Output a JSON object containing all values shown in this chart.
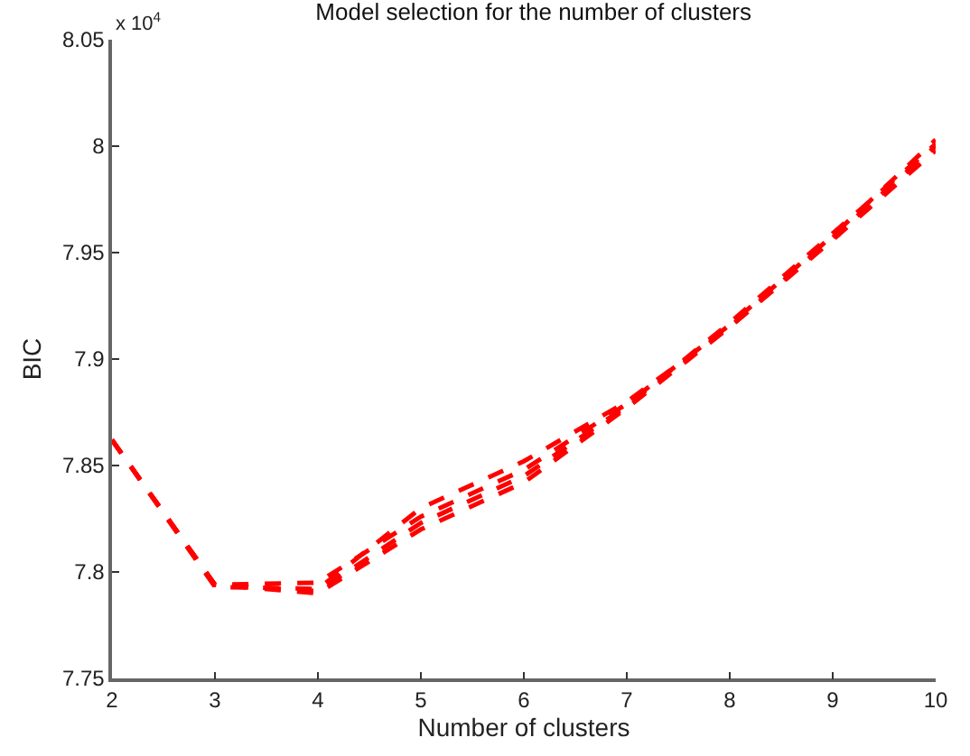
{
  "chart_data": {
    "type": "line",
    "title": "Model selection for the number of clusters",
    "xlabel": "Number of clusters",
    "ylabel": "BIC",
    "annotations": [
      "x 10$^{4}$"
    ],
    "x": [
      2,
      3,
      4,
      5,
      6,
      7,
      8,
      9,
      10
    ],
    "series": [
      {
        "color": "#ff0000",
        "values": [
          7.862,
          7.794,
          7.79,
          7.82,
          7.842,
          7.877,
          7.915,
          7.957,
          8.0
        ]
      },
      {
        "color": "#ff0000",
        "values": [
          7.862,
          7.794,
          7.795,
          7.826,
          7.848,
          7.879,
          7.916,
          7.958,
          8.003
        ]
      },
      {
        "color": "#ff0000",
        "values": [
          7.862,
          7.793,
          7.792,
          7.83,
          7.852,
          7.88,
          7.915,
          7.956,
          7.998
        ]
      },
      {
        "color": "#ff0000",
        "values": [
          7.862,
          7.794,
          7.791,
          7.823,
          7.845,
          7.878,
          7.917,
          7.959,
          8.001
        ]
      }
    ],
    "xlim": [
      2,
      10
    ],
    "xticks": [
      2,
      3,
      4,
      5,
      6,
      7,
      8,
      9,
      10
    ],
    "ylim": [
      7.75,
      8.05
    ],
    "yticks": [
      7.75,
      7.8,
      7.85,
      7.9,
      7.95,
      8,
      8.05
    ],
    "marker": "none",
    "line_style": "dashed"
  }
}
